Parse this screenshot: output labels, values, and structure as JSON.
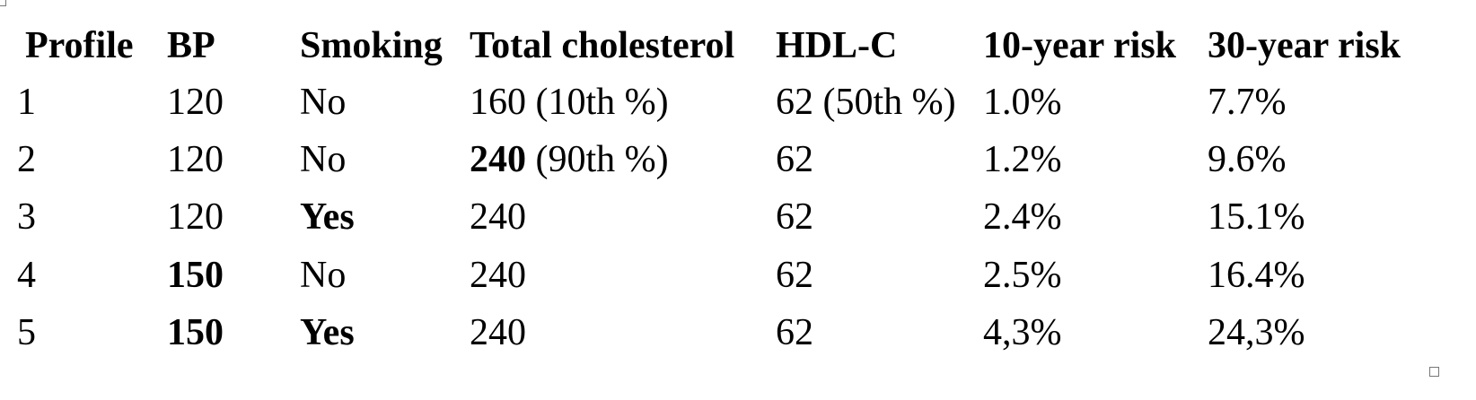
{
  "table": {
    "header": [
      "Profile",
      "BP",
      "Smoking",
      "Total cholesterol",
      "HDL-C",
      "10-year risk",
      "30-year risk"
    ],
    "rows": [
      [
        "1",
        "120",
        "No",
        "160 (10th %)",
        "62 (50th %)",
        "1.0%",
        "7.7%"
      ],
      [
        "2",
        "120",
        "No",
        {
          "runs": [
            {
              "text": "240",
              "bold": true
            },
            {
              "text": " (90th %)"
            }
          ]
        },
        "62",
        "1.2%",
        "9.6%"
      ],
      [
        "3",
        "120",
        {
          "text": "Yes",
          "bold": true
        },
        "240",
        "62",
        "2.4%",
        "15.1%"
      ],
      [
        "4",
        {
          "text": "150",
          "bold": true
        },
        "No",
        "240",
        "62",
        "2.5%",
        "16.4%"
      ],
      [
        "5",
        {
          "text": "150",
          "bold": true
        },
        {
          "text": "Yes",
          "bold": true
        },
        "240",
        "62",
        "4,3%",
        "24,3%"
      ]
    ]
  }
}
